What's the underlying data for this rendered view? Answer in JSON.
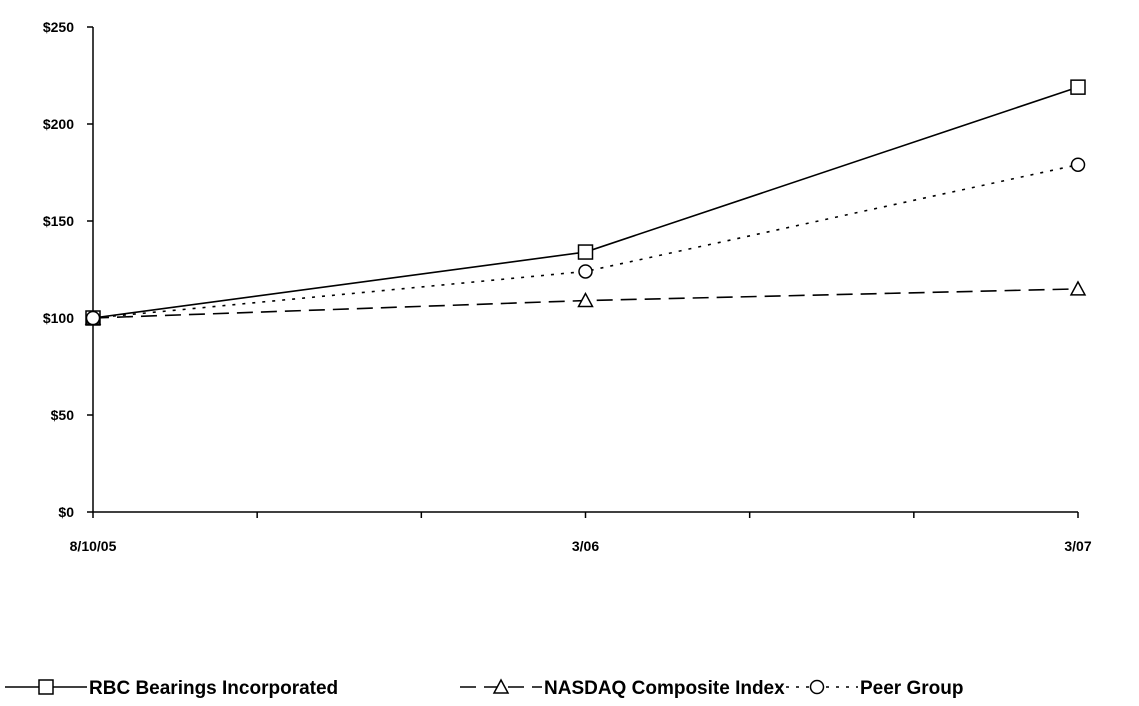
{
  "chart_data": {
    "type": "line",
    "x": [
      "8/10/05",
      "3/06",
      "3/07"
    ],
    "y_ticks": [
      "$0",
      "$50",
      "$100",
      "$150",
      "$200",
      "$250"
    ],
    "ylim": [
      0,
      250
    ],
    "grid": false,
    "legend_position": "bottom",
    "series": [
      {
        "name": "RBC Bearings Incorporated",
        "values": [
          100,
          134,
          219
        ],
        "marker": "square",
        "dash": "solid"
      },
      {
        "name": "NASDAQ Composite Index",
        "values": [
          100,
          109,
          115
        ],
        "marker": "triangle",
        "dash": "dashed"
      },
      {
        "name": "Peer Group",
        "values": [
          100,
          124,
          179
        ],
        "marker": "circle",
        "dash": "dotted"
      }
    ]
  }
}
